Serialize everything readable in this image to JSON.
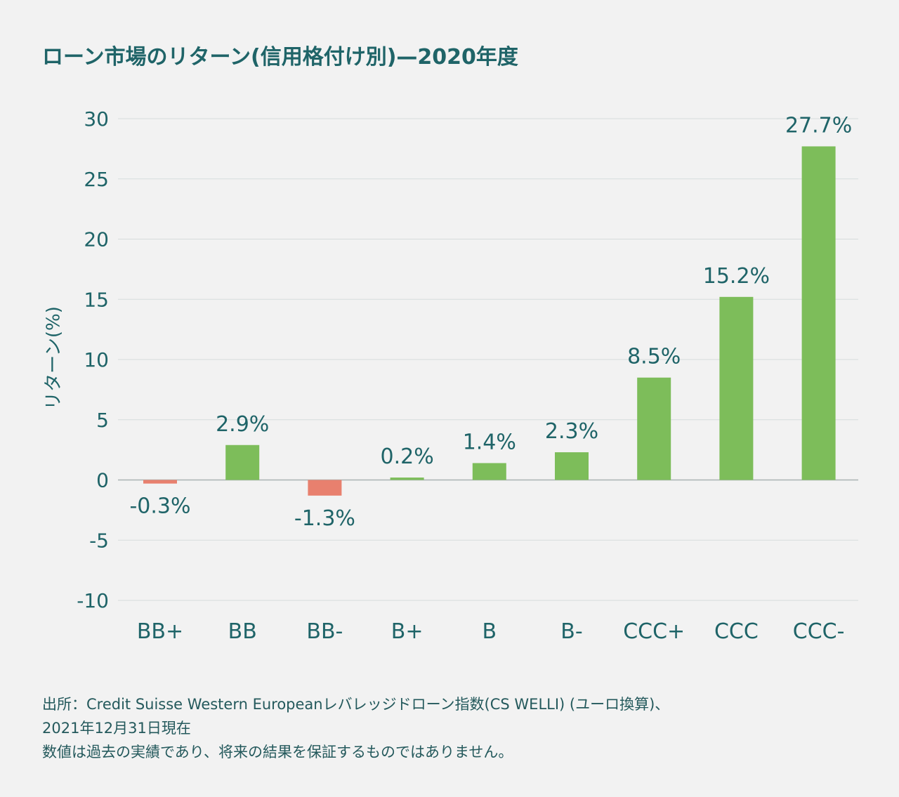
{
  "title": "ローン市場のリターン(信用格付け別)—2020年度",
  "footnotes": [
    "出所：Credit Suisse Western Europeanレバレッジドローン指数(CS WELLI) (ユーロ換算)、",
    "2021年12月31日現在",
    "数値は過去の実績であり、将来の結果を保証するものではありません。"
  ],
  "colors": {
    "positive": "#7dbd5a",
    "negative": "#e8806e",
    "text": "#1f6468",
    "grid": "#d6dcdc",
    "zero": "#a9b3b3"
  },
  "chart_data": {
    "type": "bar",
    "title": "ローン市場のリターン(信用格付け別)—2020年度",
    "xlabel": "",
    "ylabel": "リターン(%)",
    "ylim": [
      -10,
      30
    ],
    "yticks": [
      30,
      25,
      20,
      15,
      10,
      5,
      0,
      -5,
      -10
    ],
    "grid": true,
    "categories": [
      "BB+",
      "BB",
      "BB-",
      "B+",
      "B",
      "B-",
      "CCC+",
      "CCC",
      "CCC-"
    ],
    "values": [
      -0.3,
      2.9,
      -1.3,
      0.2,
      1.4,
      2.3,
      8.5,
      15.2,
      27.7
    ],
    "value_labels": [
      "-0.3%",
      "2.9%",
      "-1.3%",
      "0.2%",
      "1.4%",
      "2.3%",
      "8.5%",
      "15.2%",
      "27.7%"
    ]
  }
}
